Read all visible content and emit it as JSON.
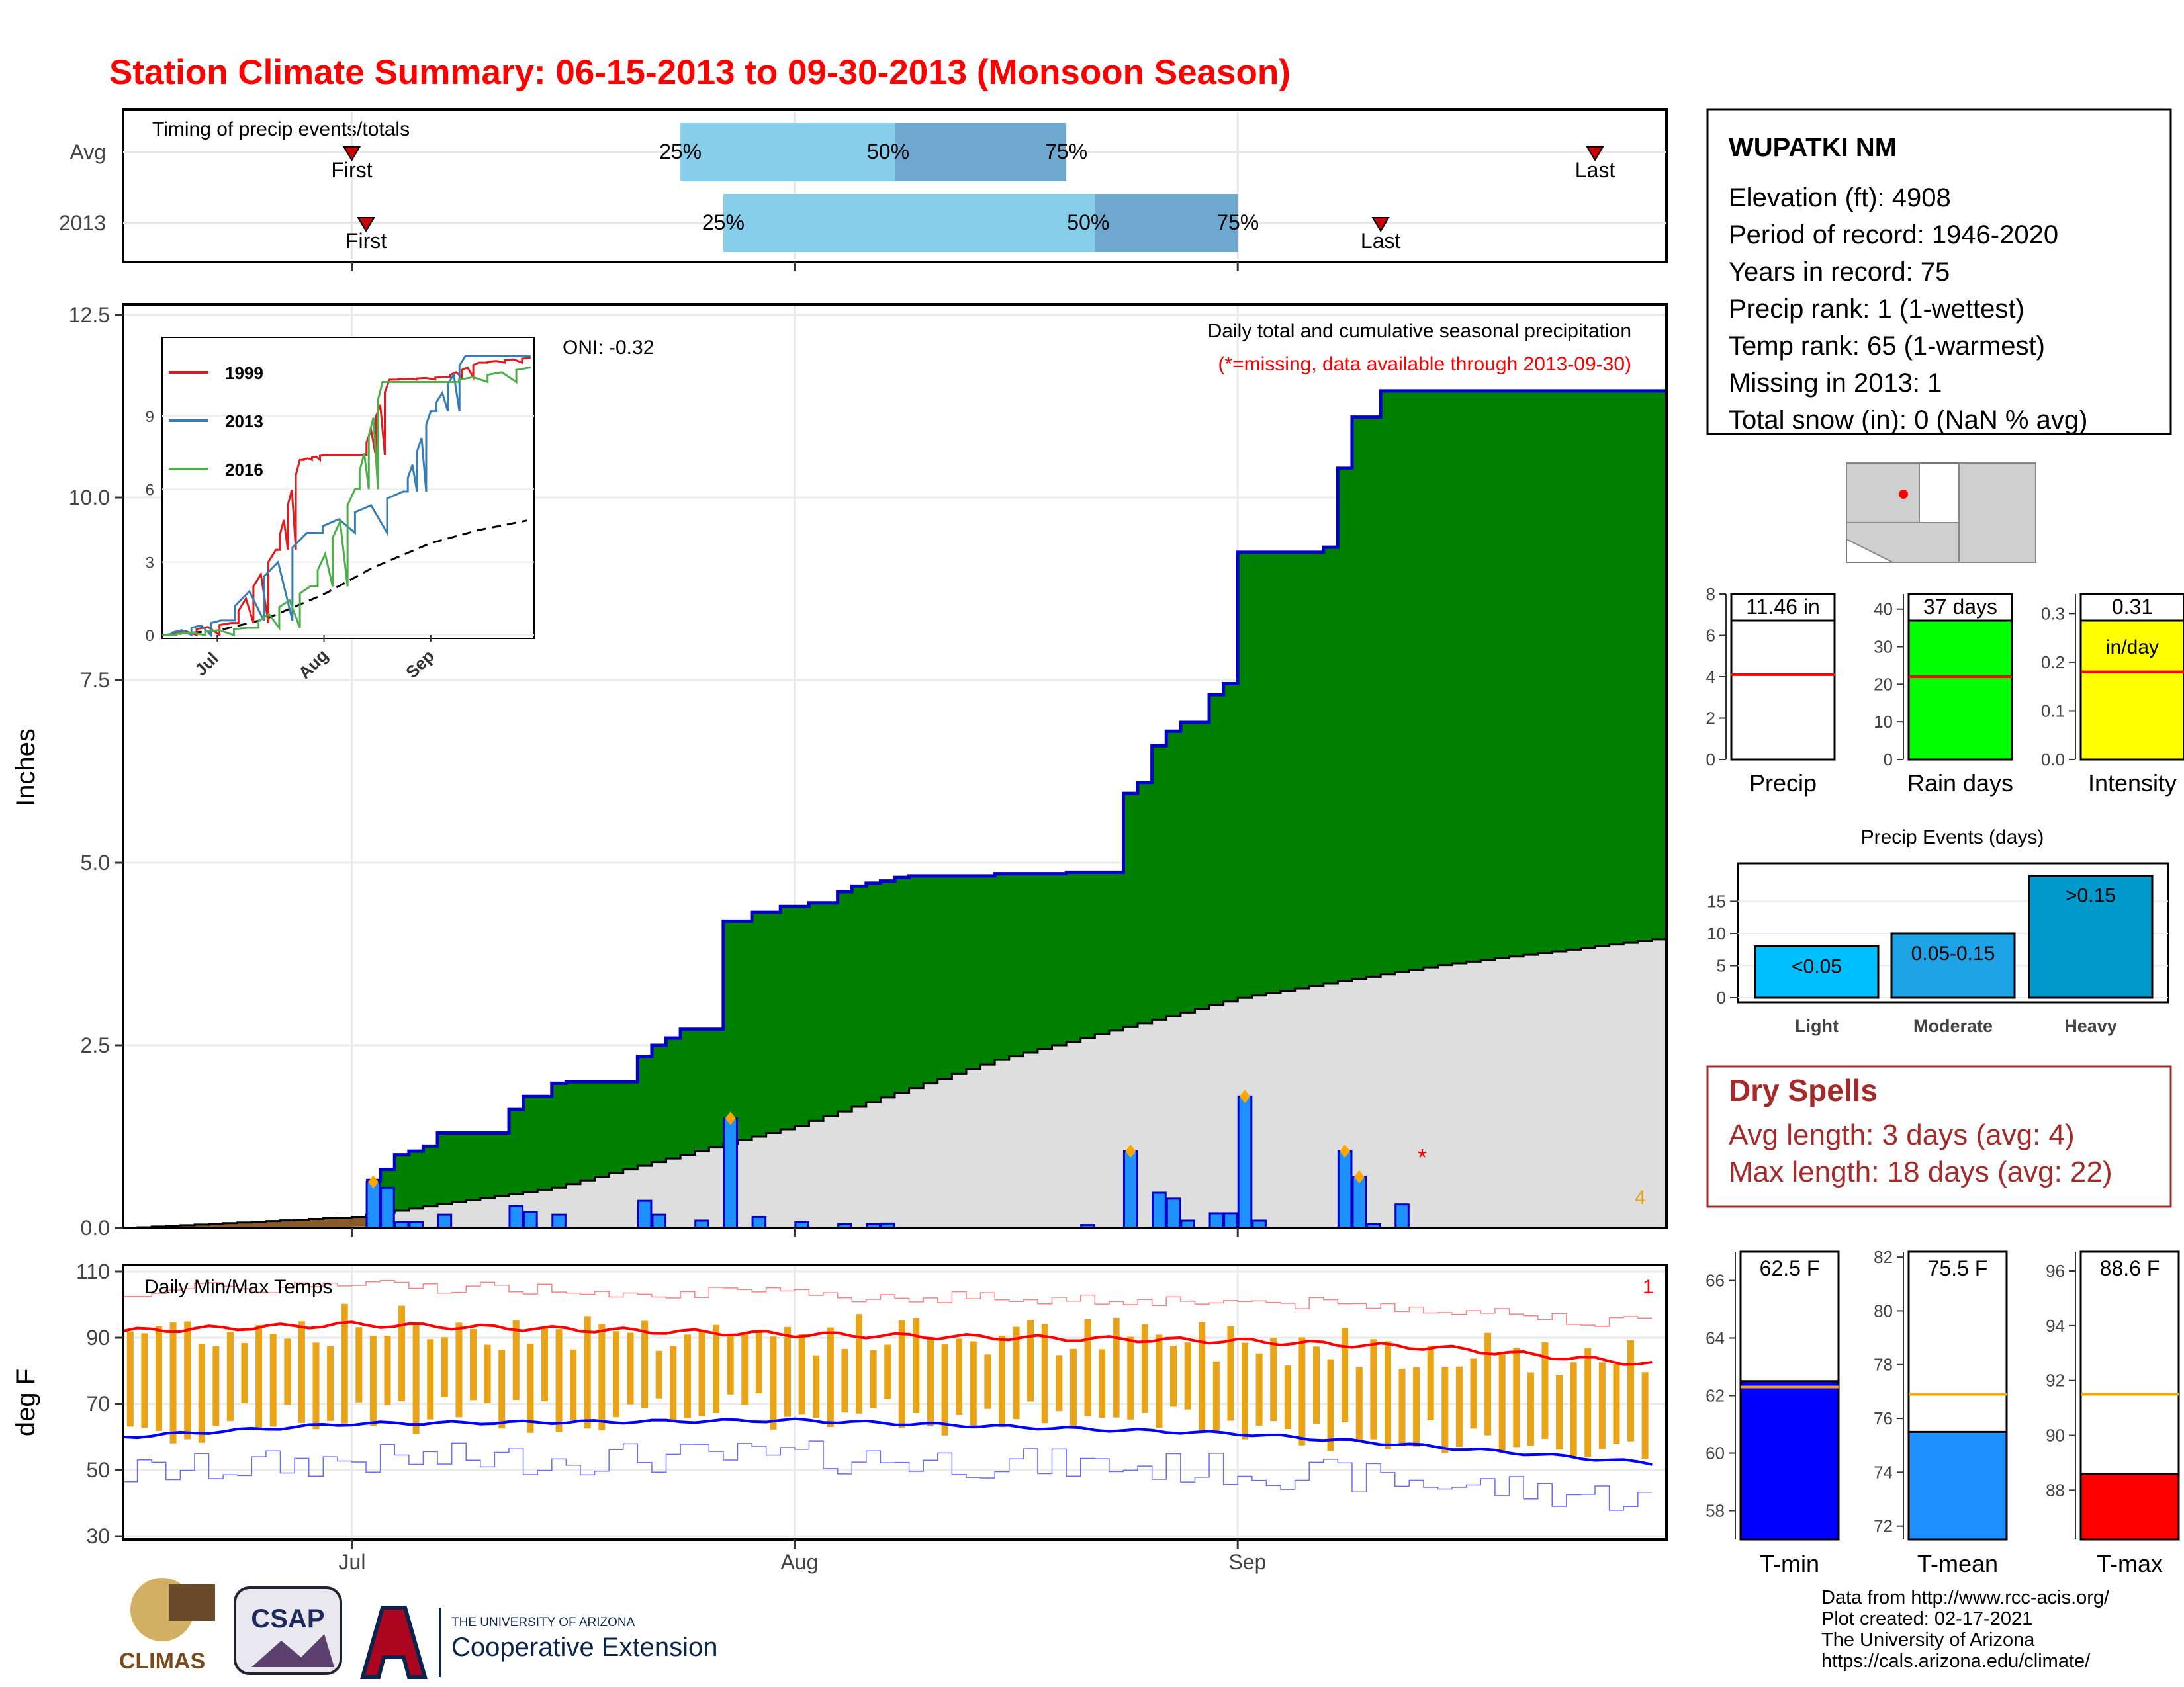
{
  "title": "Station Climate Summary: 06-15-2013 to 09-30-2013 (Monsoon Season)",
  "timing": {
    "label": "Timing of precip events/totals",
    "rows": [
      {
        "name": "Avg",
        "first": "Jul 1",
        "last": "Sep 26",
        "q25": "Jul 24",
        "q50": "Aug 8",
        "q75": "Aug 20"
      },
      {
        "name": "2013",
        "first": "Jul 2",
        "last": "Sep 11",
        "q25": "Jul 27",
        "q50": "Aug 22",
        "q75": "Sep 1"
      }
    ],
    "first_label": "First",
    "last_label": "Last",
    "q_labels": [
      "25%",
      "50%",
      "75%"
    ]
  },
  "precip_panel": {
    "ylabel": "Inches",
    "header": "Daily total and cumulative seasonal precipitation",
    "missing_note": "(*=missing, data available through 2013-09-30)",
    "oni": "ONI: -0.32",
    "count_note": "4",
    "month_labels": [
      "Jul",
      "Aug",
      "Sep"
    ]
  },
  "inset": {
    "legend": [
      "1999",
      "2013",
      "2016"
    ],
    "colors": [
      "#e41a1c",
      "#377eb8",
      "#4daf4a"
    ],
    "month_labels": [
      "Jul",
      "Aug",
      "Sep"
    ]
  },
  "temp_panel": {
    "ylabel": "deg F",
    "label": "Daily Min/Max Temps",
    "count_note": "1"
  },
  "station": {
    "name": "WUPATKI NM",
    "lines": [
      "Elevation (ft): 4908",
      "Period of record: 1946-2020",
      "Years in record: 75",
      "Precip rank: 1 (1-wettest)",
      "Temp rank: 65 (1-warmest)",
      "Missing in 2013: 1",
      "Total snow (in): 0 (NaN % avg)"
    ]
  },
  "summary_bars": [
    {
      "label": "Precip",
      "value_text": "11.46 in",
      "value": 11.46,
      "avg": 4.1,
      "ymax": 8,
      "ticks": [
        "0",
        "2",
        "4",
        "6",
        "8"
      ],
      "color": "#ffffff"
    },
    {
      "label": "Rain days",
      "value_text": "37 days",
      "value": 37,
      "avg": 22,
      "ymax": 44,
      "ticks": [
        "0",
        "10",
        "20",
        "30",
        "40"
      ],
      "color": "#00ff00"
    },
    {
      "label": "Intensity",
      "value_text": "0.31",
      "value_text2": "in/day",
      "value": 0.31,
      "avg": 0.18,
      "ymax": 0.34,
      "ticks": [
        "0.0",
        "0.1",
        "0.2",
        "0.3"
      ],
      "color": "#ffff00"
    }
  ],
  "events": {
    "title": "Precip Events (days)",
    "categories": [
      "Light",
      "Moderate",
      "Heavy"
    ],
    "labels": [
      "<0.05",
      "0.05-0.15",
      ">0.15"
    ],
    "values": [
      8,
      10,
      19
    ],
    "ticks": [
      "0",
      "5",
      "10",
      "15"
    ]
  },
  "dry_spells": {
    "title": "Dry Spells",
    "avg": "Avg length: 3 days (avg: 4)",
    "max": "Max length: 18 days (avg: 22)"
  },
  "temp_bars": [
    {
      "label": "T-min",
      "value_text": "62.5 F",
      "value": 62.5,
      "avg": 62.3,
      "range": [
        57,
        67
      ],
      "ticks": [
        "58",
        "60",
        "62",
        "64",
        "66"
      ],
      "color": "#0000ff"
    },
    {
      "label": "T-mean",
      "value_text": "75.5 F",
      "value": 75.5,
      "avg": 76.9,
      "range": [
        71.5,
        82.2
      ],
      "ticks": [
        "72",
        "74",
        "76",
        "78",
        "80",
        "82"
      ],
      "color": "#1e90ff"
    },
    {
      "label": "T-max",
      "value_text": "88.6 F",
      "value": 88.6,
      "avg": 91.5,
      "range": [
        86.2,
        96.7
      ],
      "ticks": [
        "88",
        "90",
        "92",
        "94",
        "96"
      ],
      "color": "#ff0000"
    }
  ],
  "footer": {
    "lines": [
      "Data from http://www.rcc-acis.org/",
      "Plot created: 02-17-2021",
      "The University of Arizona",
      "https://cals.arizona.edu/climate/"
    ],
    "logo1": "CLIMAS",
    "logo2": "CSAP",
    "logo3_small": "THE UNIVERSITY OF ARIZONA",
    "logo3_big": "Cooperative Extension"
  },
  "colors": {
    "title": "#ff0000",
    "cum2013": "#008000",
    "cum_avg": "#dedede",
    "daily_bar": "#1e90ff",
    "tmax": "#ff0000",
    "tmin": "#0000ff",
    "range_bar": "#e8a317",
    "quantile_light": "#87ceeb",
    "quantile_dark": "#6fa8cf"
  },
  "chart_data": [
    {
      "type": "area",
      "title": "Daily total and cumulative seasonal precipitation",
      "ylabel": "Inches",
      "ylim": [
        0,
        12.5
      ],
      "x_start": "2013-06-15",
      "x_end": "2013-09-30",
      "series": [
        {
          "name": "2013",
          "x": [
            "2013-07-01",
            "2013-07-02",
            "2013-07-03",
            "2013-07-04",
            "2013-07-05",
            "2013-07-06",
            "2013-07-07",
            "2013-07-12",
            "2013-07-13",
            "2013-07-15",
            "2013-07-16",
            "2013-07-21",
            "2013-07-22",
            "2013-07-23",
            "2013-07-24",
            "2013-07-27",
            "2013-07-29",
            "2013-07-31",
            "2013-08-02",
            "2013-08-04",
            "2013-08-05",
            "2013-08-06",
            "2013-08-07",
            "2013-08-08",
            "2013-08-09",
            "2013-08-10",
            "2013-08-15",
            "2013-08-20",
            "2013-08-24",
            "2013-08-25",
            "2013-08-26",
            "2013-08-27",
            "2013-08-28",
            "2013-08-30",
            "2013-08-31",
            "2013-09-01",
            "2013-09-07",
            "2013-09-08",
            "2013-09-09",
            "2013-09-11",
            "2013-09-30"
          ],
          "values": [
            0.02,
            0.65,
            0.8,
            1.0,
            1.05,
            1.12,
            1.3,
            1.62,
            1.8,
            1.98,
            2.0,
            2.35,
            2.5,
            2.6,
            2.72,
            4.2,
            4.32,
            4.4,
            4.45,
            4.6,
            4.68,
            4.72,
            4.75,
            4.8,
            4.82,
            4.82,
            4.85,
            4.87,
            5.95,
            6.1,
            6.6,
            6.8,
            6.92,
            7.3,
            7.45,
            9.25,
            9.32,
            10.4,
            11.1,
            11.46,
            11.46
          ]
        },
        {
          "name": "Average",
          "x": [
            "2013-06-15",
            "2013-07-01",
            "2013-07-15",
            "2013-08-01",
            "2013-08-15",
            "2013-09-01",
            "2013-09-15",
            "2013-09-30"
          ],
          "values": [
            0.0,
            0.15,
            0.55,
            1.4,
            2.3,
            3.15,
            3.6,
            3.95
          ]
        }
      ],
      "daily": {
        "x": [
          "2013-07-02",
          "2013-07-03",
          "2013-07-04",
          "2013-07-05",
          "2013-07-07",
          "2013-07-12",
          "2013-07-13",
          "2013-07-15",
          "2013-07-21",
          "2013-07-22",
          "2013-07-25",
          "2013-07-27",
          "2013-07-29",
          "2013-08-01",
          "2013-08-04",
          "2013-08-06",
          "2013-08-07",
          "2013-08-21",
          "2013-08-24",
          "2013-08-26",
          "2013-08-27",
          "2013-08-28",
          "2013-08-30",
          "2013-08-31",
          "2013-09-01",
          "2013-09-02",
          "2013-09-08",
          "2013-09-09",
          "2013-09-10",
          "2013-09-12"
        ],
        "values": [
          0.63,
          0.55,
          0.08,
          0.08,
          0.18,
          0.3,
          0.22,
          0.18,
          0.37,
          0.18,
          0.1,
          1.5,
          0.15,
          0.08,
          0.05,
          0.05,
          0.06,
          0.04,
          1.05,
          0.48,
          0.4,
          0.1,
          0.2,
          0.2,
          1.8,
          0.1,
          1.05,
          0.7,
          0.05,
          0.32
        ]
      }
    },
    {
      "type": "line",
      "title": "Daily Min/Max Temps",
      "ylabel": "deg F",
      "ylim": [
        30,
        110
      ],
      "series": [
        {
          "name": "Avg max",
          "x": [
            "2013-06-15",
            "2013-07-01",
            "2013-08-01",
            "2013-09-01",
            "2013-09-15",
            "2013-09-30"
          ],
          "values": [
            92,
            94,
            91,
            89,
            87,
            82
          ]
        },
        {
          "name": "Avg min",
          "x": [
            "2013-06-15",
            "2013-07-01",
            "2013-08-01",
            "2013-09-01",
            "2013-09-15",
            "2013-09-30"
          ],
          "values": [
            60,
            64,
            65,
            61,
            57,
            52
          ]
        }
      ]
    },
    {
      "type": "line",
      "title": "",
      "ylim": [
        0,
        12
      ],
      "series": [
        {
          "name": "1999",
          "x": [
            "Jun 15",
            "Jul 5",
            "Jul 18",
            "Jul 25",
            "Aug 1",
            "Aug 12",
            "Aug 20",
            "Sep 5",
            "Sep 15",
            "Sep 30"
          ],
          "values": [
            0,
            0.5,
            3.5,
            7.2,
            7.4,
            7.4,
            10.5,
            10.6,
            11.2,
            11.4
          ]
        },
        {
          "name": "2013",
          "x": [
            "Jun 15",
            "Jul 2",
            "Jul 27",
            "Aug 24",
            "Sep 1",
            "Sep 11",
            "Sep 30"
          ],
          "values": [
            0,
            0.6,
            4.2,
            5.9,
            9.2,
            11.46,
            11.46
          ]
        },
        {
          "name": "2016",
          "x": [
            "Jun 15",
            "Jul 10",
            "Jul 28",
            "Aug 10",
            "Aug 18",
            "Sep 5",
            "Sep 30"
          ],
          "values": [
            0,
            0.3,
            2.0,
            6.0,
            10.4,
            10.4,
            11.0
          ]
        }
      ]
    },
    {
      "type": "bar",
      "title": "Precip Events (days)",
      "categories": [
        "Light",
        "Moderate",
        "Heavy"
      ],
      "values": [
        8,
        10,
        19
      ]
    }
  ]
}
